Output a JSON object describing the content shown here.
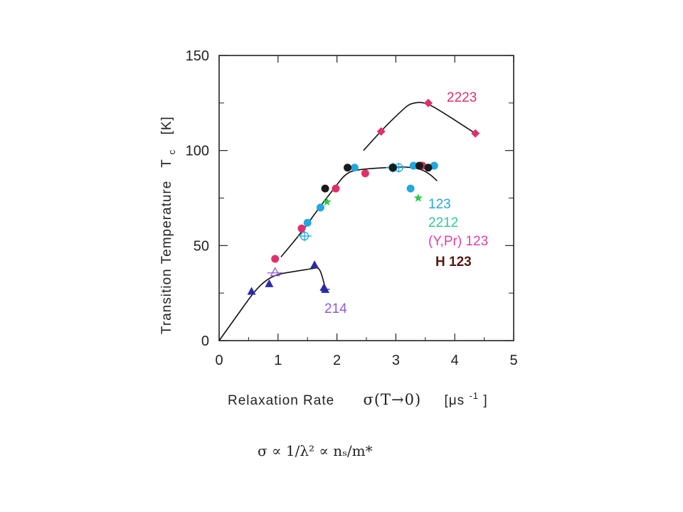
{
  "chart_data": {
    "type": "scatter",
    "title": "",
    "xlabel_parts": {
      "text": "Relaxation Rate",
      "symbol": "σ(T→0)",
      "unit": "[μs",
      "unit_exp": "-1",
      "unit_close": "]"
    },
    "ylabel": "Transition Temperature",
    "ylabel_symbol": "T",
    "ylabel_sub": "c",
    "ylabel_unit": "[K]",
    "xlim": [
      0,
      5
    ],
    "ylim": [
      0,
      150
    ],
    "xticks": [
      0,
      1,
      2,
      3,
      4,
      5
    ],
    "yticks": [
      0,
      50,
      100,
      150
    ],
    "legend_texts": {
      "s2223": "2223",
      "s123": "123",
      "s2212": "2212",
      "sYPr": "(Y,Pr) 123",
      "sH": "H 123",
      "s214": "214"
    },
    "formula": "σ ∝ 1/λ² ∝ nₛ/m*",
    "series": [
      {
        "name": "2223",
        "color": "#e0306a",
        "marker": "diamond",
        "points": [
          [
            2.75,
            110
          ],
          [
            3.55,
            125
          ],
          [
            4.35,
            109
          ]
        ]
      },
      {
        "name": "123",
        "color": "#22a7e0",
        "marker": "circle",
        "points": [
          [
            1.5,
            62
          ],
          [
            1.72,
            70
          ],
          [
            2.3,
            91
          ],
          [
            3.25,
            80
          ],
          [
            3.3,
            92
          ],
          [
            3.45,
            92
          ],
          [
            3.65,
            92
          ]
        ]
      },
      {
        "name": "123 (muon, open)",
        "color": "#22a7e0",
        "marker": "open-circle-cross",
        "points": [
          [
            1.45,
            55
          ],
          [
            2.95,
            91
          ],
          [
            3.05,
            91
          ]
        ]
      },
      {
        "name": "2212",
        "color": "#2ec84a",
        "marker": "star",
        "points": [
          [
            1.83,
            73
          ],
          [
            3.38,
            75
          ]
        ]
      },
      {
        "name": "(Y,Pr) 123",
        "color": "#e0306a",
        "marker": "circle",
        "points": [
          [
            0.95,
            43
          ],
          [
            1.4,
            59
          ],
          [
            1.98,
            80
          ],
          [
            2.48,
            88
          ],
          [
            3.45,
            92
          ]
        ]
      },
      {
        "name": "H 123",
        "color": "#1a1a1a",
        "marker": "circle",
        "points": [
          [
            1.8,
            80
          ],
          [
            2.18,
            91
          ],
          [
            2.95,
            91
          ],
          [
            3.4,
            92
          ],
          [
            3.55,
            91
          ]
        ]
      },
      {
        "name": "214",
        "color": "#2b2ba8",
        "marker": "triangle",
        "points": [
          [
            0.55,
            26
          ],
          [
            0.85,
            30
          ],
          [
            1.62,
            40
          ],
          [
            1.78,
            28
          ],
          [
            1.8,
            27
          ]
        ]
      },
      {
        "name": "214 (open)",
        "color": "#8c5bd6",
        "marker": "open-triangle",
        "points": [
          [
            0.95,
            36
          ]
        ]
      }
    ],
    "curves": [
      {
        "points": [
          [
            2.45,
            100
          ],
          [
            2.8,
            112
          ],
          [
            3.1,
            121
          ],
          [
            3.25,
            125
          ],
          [
            3.5,
            125.5
          ],
          [
            3.8,
            120
          ],
          [
            4.1,
            114
          ],
          [
            4.35,
            109
          ]
        ]
      },
      {
        "points": [
          [
            1.05,
            44
          ],
          [
            1.4,
            57
          ],
          [
            1.7,
            70
          ],
          [
            1.95,
            80
          ],
          [
            2.15,
            88
          ],
          [
            2.35,
            90
          ],
          [
            2.8,
            91
          ],
          [
            3.2,
            91.5
          ],
          [
            3.45,
            90
          ],
          [
            3.6,
            87
          ],
          [
            3.7,
            84
          ]
        ]
      },
      {
        "points": [
          [
            0,
            0
          ],
          [
            0.3,
            13
          ],
          [
            0.6,
            26
          ],
          [
            0.8,
            32
          ],
          [
            1.0,
            35
          ],
          [
            1.3,
            36.5
          ],
          [
            1.6,
            38
          ],
          [
            1.68,
            38.5
          ],
          [
            1.73,
            36
          ],
          [
            1.8,
            28
          ]
        ]
      }
    ]
  }
}
